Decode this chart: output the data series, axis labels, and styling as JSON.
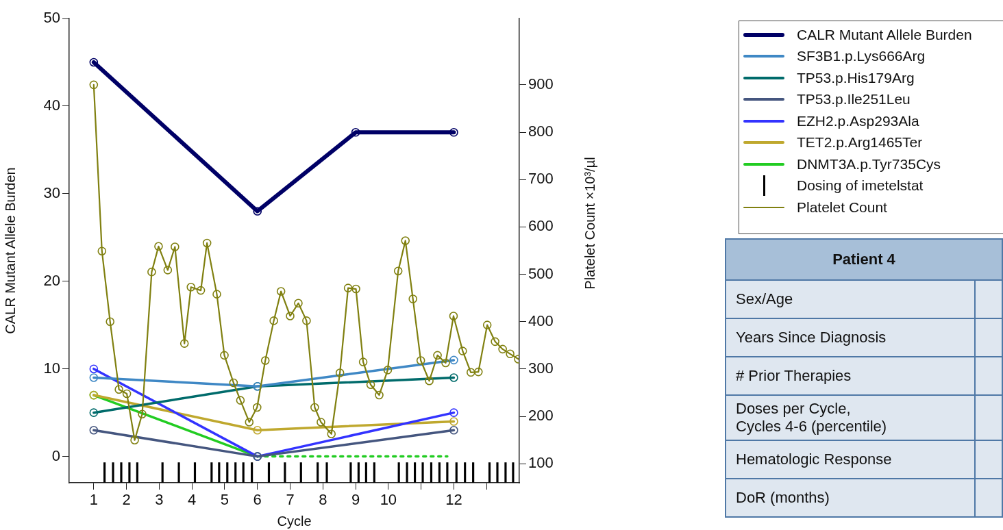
{
  "chart_data": [
    {
      "type": "line",
      "xlabel": "Cycle",
      "ylabel": "CALR Mutant Allele Burden",
      "y2label": "Platelet Count ×10³/µl",
      "xlim": [
        0.25,
        14
      ],
      "xticks": [
        1,
        2,
        3,
        4,
        5,
        6,
        7,
        8,
        9,
        10,
        {
          "value": 11,
          "label": null
        },
        12,
        {
          "value": 13,
          "label": null
        }
      ],
      "ylim": [
        -3,
        50
      ],
      "yticks": [
        0,
        10,
        20,
        30,
        40,
        50
      ],
      "y2lim": [
        60,
        1040
      ],
      "y2ticks": [
        100,
        200,
        300,
        400,
        500,
        600,
        700,
        800,
        900
      ],
      "legend": "right",
      "marker": "circle",
      "line_style": "solid",
      "series": [
        {
          "name": "CALR Mutant Allele Burden",
          "color": "#000066",
          "x": [
            1,
            6,
            9,
            12
          ],
          "values": [
            45,
            28,
            37,
            37
          ]
        },
        {
          "name": "SF3B1.p.Lys666Arg",
          "color": "#3f88c5",
          "x": [
            1,
            6,
            12
          ],
          "values": [
            9,
            8,
            11
          ]
        },
        {
          "name": "TP53.p.His179Arg",
          "color": "#006b6b",
          "x": [
            1,
            6,
            12
          ],
          "values": [
            5,
            8,
            9
          ]
        },
        {
          "name": "TP53.p.Ile251Leu",
          "color": "#45567f",
          "x": [
            1,
            6,
            12
          ],
          "values": [
            3,
            0,
            3
          ]
        },
        {
          "name": "EZH2.p.Asp293Ala",
          "color": "#3333ff",
          "x": [
            1,
            6,
            12
          ],
          "values": [
            10,
            0,
            5
          ]
        },
        {
          "name": "TET2.p.Arg1465Ter",
          "color": "#bfa82e",
          "x": [
            1,
            6,
            12
          ],
          "values": [
            7,
            3,
            4
          ]
        },
        {
          "name": "DNMT3A.p.Tyr735Cys",
          "color": "#22cc22",
          "x": [
            1,
            6
          ],
          "values": [
            7,
            0
          ]
        },
        {
          "color": "#22cc22",
          "x": [
            6,
            11.8
          ],
          "values": [
            0,
            0
          ],
          "marker": "none",
          "line_style": "dotted"
        },
        {
          "name": "Dosing of imetelstat",
          "type": "bar",
          "color": "#000000",
          "base": [
            -3,
            -3,
            -3,
            -3,
            -3,
            -3,
            -3,
            -3,
            -3,
            -3,
            -3,
            -3,
            -3,
            -3,
            -3,
            -3,
            -3,
            -3,
            -3,
            -3,
            -3,
            -3,
            -3,
            -3,
            -3,
            -3,
            -3,
            -3,
            -3,
            -3,
            -3,
            -3,
            -3,
            -3,
            -3,
            -3,
            -3
          ],
          "x": [
            1.33,
            1.59,
            1.84,
            2.09,
            2.33,
            3.1,
            3.6,
            4.09,
            4.6,
            4.83,
            5.08,
            5.33,
            5.57,
            5.83,
            6.35,
            6.84,
            7.33,
            7.84,
            8.12,
            8.85,
            9.09,
            9.32,
            9.57,
            10.32,
            10.57,
            10.81,
            11.05,
            11.31,
            11.56,
            11.8,
            12.08,
            12.34,
            12.59,
            13.09,
            13.33,
            13.58,
            13.81
          ],
          "values": [
            2.3,
            2.3,
            2.3,
            2.3,
            2.3,
            2.3,
            2.3,
            2.3,
            2.3,
            2.3,
            2.3,
            2.3,
            2.3,
            2.3,
            2.3,
            2.3,
            2.3,
            2.3,
            2.3,
            2.3,
            2.3,
            2.3,
            2.3,
            2.3,
            2.3,
            2.3,
            2.3,
            2.3,
            2.3,
            2.3,
            2.3,
            2.3,
            2.3,
            2.3,
            2.3,
            2.3,
            2.3
          ]
        },
        {
          "name": "Platelet Count",
          "color": "#808010",
          "axis": "y2",
          "x": [
            1,
            1.25,
            1.5,
            1.77,
            2.01,
            2.25,
            2.48,
            2.77,
            2.98,
            3.26,
            3.48,
            3.77,
            3.97,
            4.27,
            4.46,
            4.76,
            4.99,
            5.27,
            5.48,
            5.75,
            5.99,
            6.24,
            6.5,
            6.72,
            7,
            7.25,
            7.5,
            7.75,
            7.94,
            8.26,
            8.52,
            8.77,
            9.01,
            9.23,
            9.46,
            9.72,
            9.98,
            10.3,
            10.52,
            10.75,
            10.99,
            11.25,
            11.5,
            11.75,
            11.99,
            12.27,
            12.52,
            12.75,
            13.02,
            13.26,
            13.49,
            13.72,
            13.97
          ],
          "values": [
            900,
            549,
            400,
            257,
            248,
            150,
            205,
            505,
            559,
            509,
            558,
            354,
            473,
            466,
            566,
            458,
            329,
            271,
            234,
            188,
            219,
            318,
            402,
            464,
            412,
            439,
            402,
            219,
            188,
            163,
            292,
            471,
            469,
            315,
            267,
            245,
            298,
            507,
            571,
            448,
            318,
            275,
            329,
            313,
            412,
            338,
            293,
            294,
            393,
            358,
            342,
            332,
            321
          ]
        }
      ]
    },
    {
      "type": "other",
      "title": "Patient 4",
      "annotations": [
        "Sex/Age",
        "Years Since Diagnosis",
        "# Prior Therapies",
        "Doses per Cycle,\nCycles 4-6 (percentile)",
        "Hematologic Response",
        "DoR (months)"
      ]
    }
  ]
}
